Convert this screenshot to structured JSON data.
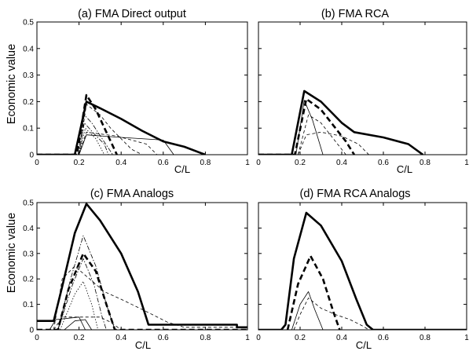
{
  "figure": {
    "ylabel": "Economic value",
    "xlabel": "C/L"
  },
  "chart_data": [
    {
      "type": "line",
      "title": "(a) FMA Direct output",
      "xlabel": "C/L",
      "ylabel": "Economic value",
      "xlim": [
        0,
        1
      ],
      "ylim": [
        0,
        0.5
      ],
      "xticks": [
        "0",
        "0.2",
        "0.4",
        "0.6",
        "0.8",
        "1"
      ],
      "yticks": [
        "0",
        "0.1",
        "0.2",
        "0.3",
        "0.4",
        "0.5"
      ],
      "series": [
        {
          "style": "thick-solid",
          "points": [
            [
              0,
              0
            ],
            [
              0.18,
              0
            ],
            [
              0.235,
              0.2
            ],
            [
              0.3,
              0.175
            ],
            [
              0.4,
              0.135
            ],
            [
              0.5,
              0.09
            ],
            [
              0.6,
              0.05
            ],
            [
              0.7,
              0.03
            ],
            [
              0.8,
              0
            ]
          ]
        },
        {
          "style": "thick-dashed",
          "points": [
            [
              0,
              0
            ],
            [
              0.19,
              0
            ],
            [
              0.235,
              0.225
            ],
            [
              0.28,
              0.17
            ],
            [
              0.33,
              0.085
            ],
            [
              0.38,
              0
            ]
          ]
        },
        {
          "style": "thin-solid",
          "points": [
            [
              0.2,
              0
            ],
            [
              0.235,
              0.075
            ],
            [
              0.4,
              0.065
            ],
            [
              0.6,
              0.055
            ],
            [
              0.65,
              0
            ]
          ]
        },
        {
          "style": "thin-dashed",
          "points": [
            [
              0.2,
              0
            ],
            [
              0.235,
              0.19
            ],
            [
              0.3,
              0.15
            ],
            [
              0.35,
              0.1
            ],
            [
              0.4,
              0.06
            ],
            [
              0.45,
              0.02
            ],
            [
              0.5,
              0
            ]
          ]
        },
        {
          "style": "thin-dashed",
          "points": [
            [
              0.2,
              0
            ],
            [
              0.235,
              0.085
            ],
            [
              0.38,
              0.07
            ],
            [
              0.52,
              0.04
            ],
            [
              0.57,
              0
            ]
          ]
        },
        {
          "style": "thin-dashdot",
          "points": [
            [
              0.195,
              0
            ],
            [
              0.225,
              0.15
            ],
            [
              0.26,
              0.12
            ],
            [
              0.31,
              0.06
            ],
            [
              0.36,
              0
            ]
          ]
        },
        {
          "style": "thin-dashdot",
          "points": [
            [
              0.2,
              0
            ],
            [
              0.225,
              0.12
            ],
            [
              0.27,
              0.08
            ],
            [
              0.32,
              0.04
            ],
            [
              0.34,
              0
            ]
          ]
        },
        {
          "style": "thin-dotted",
          "points": [
            [
              0.2,
              0
            ],
            [
              0.23,
              0.1
            ],
            [
              0.28,
              0.06
            ],
            [
              0.32,
              0
            ]
          ]
        }
      ]
    },
    {
      "type": "line",
      "title": "(b) FMA RCA",
      "xlabel": "C/L",
      "xlim": [
        0,
        1
      ],
      "ylim": [
        0,
        0.5
      ],
      "xticks": [
        "0",
        "0.2",
        "0.4",
        "0.6",
        "0.8",
        "1"
      ],
      "yticks": [],
      "series": [
        {
          "style": "thick-solid",
          "points": [
            [
              0,
              0
            ],
            [
              0.16,
              0
            ],
            [
              0.22,
              0.24
            ],
            [
              0.3,
              0.2
            ],
            [
              0.4,
              0.12
            ],
            [
              0.46,
              0.085
            ],
            [
              0.6,
              0.065
            ],
            [
              0.72,
              0.04
            ],
            [
              0.79,
              0
            ]
          ]
        },
        {
          "style": "thick-dashed",
          "points": [
            [
              0,
              0
            ],
            [
              0.175,
              0
            ],
            [
              0.23,
              0.21
            ],
            [
              0.3,
              0.17
            ],
            [
              0.36,
              0.11
            ],
            [
              0.42,
              0.05
            ],
            [
              0.46,
              0
            ]
          ]
        },
        {
          "style": "thin-solid",
          "points": [
            [
              0.18,
              0
            ],
            [
              0.22,
              0.205
            ],
            [
              0.26,
              0.13
            ],
            [
              0.31,
              0
            ]
          ]
        },
        {
          "style": "thin-dashed",
          "points": [
            [
              0.19,
              0
            ],
            [
              0.23,
              0.075
            ],
            [
              0.3,
              0.085
            ],
            [
              0.4,
              0.07
            ],
            [
              0.48,
              0.04
            ],
            [
              0.53,
              0
            ]
          ]
        },
        {
          "style": "thin-dashed",
          "points": [
            [
              0.19,
              0
            ],
            [
              0.24,
              0.15
            ],
            [
              0.3,
              0.12
            ],
            [
              0.38,
              0.04
            ],
            [
              0.42,
              0
            ]
          ]
        }
      ]
    },
    {
      "type": "line",
      "title": "(c) FMA Analogs",
      "xlabel": "C/L",
      "ylabel": "Economic value",
      "xlim": [
        0,
        1
      ],
      "ylim": [
        0,
        0.5
      ],
      "xticks": [
        "0",
        "0.2",
        "0.4",
        "0.6",
        "0.8",
        "1"
      ],
      "yticks": [
        "0",
        "0.1",
        "0.2",
        "0.3",
        "0.4",
        "0.5"
      ],
      "series": [
        {
          "style": "thick-solid",
          "points": [
            [
              0,
              0.035
            ],
            [
              0.06,
              0.035
            ],
            [
              0.08,
              0.035
            ],
            [
              0.12,
              0.17
            ],
            [
              0.18,
              0.38
            ],
            [
              0.235,
              0.495
            ],
            [
              0.3,
              0.43
            ],
            [
              0.4,
              0.3
            ],
            [
              0.48,
              0.15
            ],
            [
              0.53,
              0.02
            ],
            [
              0.95,
              0.02
            ],
            [
              0.95,
              0.01
            ],
            [
              1.0,
              0.01
            ]
          ]
        },
        {
          "style": "thick-dashed",
          "points": [
            [
              0,
              0
            ],
            [
              0.1,
              0
            ],
            [
              0.15,
              0.16
            ],
            [
              0.22,
              0.3
            ],
            [
              0.28,
              0.23
            ],
            [
              0.33,
              0.1
            ],
            [
              0.37,
              0
            ],
            [
              1.0,
              0
            ]
          ]
        },
        {
          "style": "thin-solid",
          "points": [
            [
              0.06,
              0
            ],
            [
              0.09,
              0.04
            ],
            [
              0.2,
              0.05
            ],
            [
              0.23,
              0
            ]
          ]
        },
        {
          "style": "thin-solid",
          "points": [
            [
              0.13,
              0
            ],
            [
              0.18,
              0.035
            ],
            [
              0.23,
              0.04
            ],
            [
              0.26,
              0
            ]
          ]
        },
        {
          "style": "thin-dashed",
          "points": [
            [
              0.08,
              0
            ],
            [
              0.12,
              0.2
            ],
            [
              0.18,
              0.25
            ],
            [
              0.25,
              0.2
            ],
            [
              0.32,
              0.15
            ],
            [
              0.4,
              0.12
            ],
            [
              0.5,
              0.08
            ],
            [
              0.62,
              0.03
            ],
            [
              0.7,
              0.01
            ],
            [
              0.98,
              0.01
            ]
          ]
        },
        {
          "style": "thin-dashed",
          "points": [
            [
              0.08,
              0
            ],
            [
              0.12,
              0.05
            ],
            [
              0.3,
              0.05
            ],
            [
              0.35,
              0.03
            ],
            [
              0.4,
              0
            ]
          ]
        },
        {
          "style": "thin-dashdot",
          "points": [
            [
              0.1,
              0
            ],
            [
              0.16,
              0.2
            ],
            [
              0.22,
              0.37
            ],
            [
              0.28,
              0.25
            ],
            [
              0.33,
              0.1
            ],
            [
              0.37,
              0
            ]
          ]
        },
        {
          "style": "thin-dashdot",
          "points": [
            [
              0.1,
              0
            ],
            [
              0.17,
              0.18
            ],
            [
              0.22,
              0.28
            ],
            [
              0.27,
              0.18
            ],
            [
              0.31,
              0.05
            ],
            [
              0.33,
              0
            ]
          ]
        },
        {
          "style": "thin-dotted",
          "points": [
            [
              0.11,
              0
            ],
            [
              0.18,
              0.14
            ],
            [
              0.22,
              0.19
            ],
            [
              0.26,
              0.1
            ],
            [
              0.29,
              0
            ]
          ]
        }
      ]
    },
    {
      "type": "line",
      "title": "(d) FMA RCA Analogs",
      "xlabel": "C/L",
      "xlim": [
        0,
        1
      ],
      "ylim": [
        0,
        0.5
      ],
      "xticks": [
        "0",
        "0.2",
        "0.4",
        "0.6",
        "0.8",
        "1"
      ],
      "yticks": [],
      "series": [
        {
          "style": "thick-solid",
          "points": [
            [
              0,
              0
            ],
            [
              0.11,
              0
            ],
            [
              0.13,
              0.02
            ],
            [
              0.17,
              0.28
            ],
            [
              0.23,
              0.46
            ],
            [
              0.3,
              0.41
            ],
            [
              0.4,
              0.27
            ],
            [
              0.47,
              0.12
            ],
            [
              0.52,
              0.02
            ],
            [
              0.55,
              0
            ],
            [
              1.0,
              0
            ]
          ]
        },
        {
          "style": "thick-dashed",
          "points": [
            [
              0.14,
              0
            ],
            [
              0.19,
              0.18
            ],
            [
              0.25,
              0.29
            ],
            [
              0.31,
              0.2
            ],
            [
              0.36,
              0.07
            ],
            [
              0.39,
              0
            ]
          ]
        },
        {
          "style": "thin-solid",
          "points": [
            [
              0.16,
              0
            ],
            [
              0.2,
              0.1
            ],
            [
              0.24,
              0.15
            ],
            [
              0.27,
              0.08
            ],
            [
              0.31,
              0
            ]
          ]
        },
        {
          "style": "thin-dashed",
          "points": [
            [
              0.17,
              0
            ],
            [
              0.2,
              0.06
            ],
            [
              0.24,
              0.125
            ],
            [
              0.3,
              0.085
            ],
            [
              0.37,
              0.06
            ],
            [
              0.44,
              0.04
            ],
            [
              0.5,
              0.015
            ],
            [
              0.53,
              0
            ]
          ]
        }
      ]
    }
  ]
}
